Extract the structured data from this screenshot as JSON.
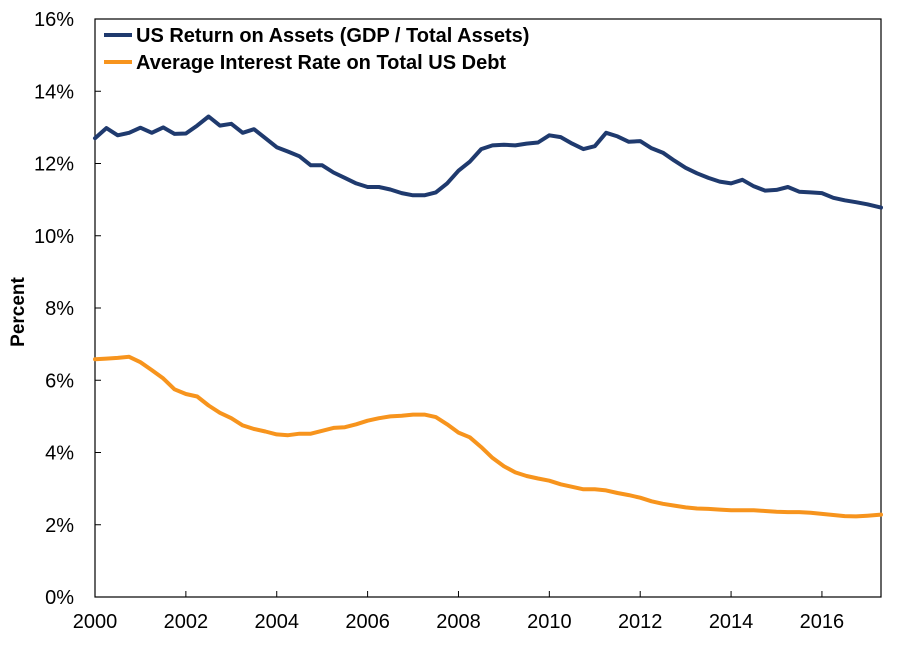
{
  "chart_data": {
    "type": "line",
    "title": "",
    "xlabel": "",
    "ylabel": "Percent",
    "xlim": [
      2000,
      2017.3
    ],
    "ylim": [
      0,
      16
    ],
    "x_ticks": [
      2000,
      2002,
      2004,
      2006,
      2008,
      2010,
      2012,
      2014,
      2016
    ],
    "x_tick_labels": [
      "2000",
      "2002",
      "2004",
      "2006",
      "2008",
      "2010",
      "2012",
      "2014",
      "2016"
    ],
    "y_ticks": [
      0,
      2,
      4,
      6,
      8,
      10,
      12,
      14,
      16
    ],
    "y_tick_labels": [
      "0%",
      "2%",
      "4%",
      "6%",
      "8%",
      "10%",
      "12%",
      "14%",
      "16%"
    ],
    "grid": false,
    "legend_position": "top-left",
    "series": [
      {
        "name": "US Return on Assets (GDP / Total Assets)",
        "color": "#1f3a6e",
        "x": [
          2000.0,
          2000.25,
          2000.5,
          2000.75,
          2001.0,
          2001.25,
          2001.5,
          2001.75,
          2002.0,
          2002.25,
          2002.5,
          2002.75,
          2003.0,
          2003.25,
          2003.5,
          2003.75,
          2004.0,
          2004.25,
          2004.5,
          2004.75,
          2005.0,
          2005.25,
          2005.5,
          2005.75,
          2006.0,
          2006.25,
          2006.5,
          2006.75,
          2007.0,
          2007.25,
          2007.5,
          2007.75,
          2008.0,
          2008.25,
          2008.5,
          2008.75,
          2009.0,
          2009.25,
          2009.5,
          2009.75,
          2010.0,
          2010.25,
          2010.5,
          2010.75,
          2011.0,
          2011.25,
          2011.5,
          2011.75,
          2012.0,
          2012.25,
          2012.5,
          2012.75,
          2013.0,
          2013.25,
          2013.5,
          2013.75,
          2014.0,
          2014.25,
          2014.5,
          2014.75,
          2015.0,
          2015.25,
          2015.5,
          2015.75,
          2016.0,
          2016.25,
          2016.5,
          2016.75,
          2017.0,
          2017.3
        ],
        "y": [
          12.7,
          12.98,
          12.78,
          12.85,
          12.99,
          12.85,
          13.0,
          12.82,
          12.83,
          13.05,
          13.3,
          13.05,
          13.1,
          12.85,
          12.95,
          12.7,
          12.45,
          12.33,
          12.2,
          11.95,
          11.95,
          11.75,
          11.6,
          11.45,
          11.35,
          11.35,
          11.28,
          11.18,
          11.12,
          11.12,
          11.2,
          11.45,
          11.8,
          12.05,
          12.4,
          12.5,
          12.52,
          12.5,
          12.55,
          12.58,
          12.78,
          12.73,
          12.55,
          12.4,
          12.48,
          12.85,
          12.75,
          12.6,
          12.62,
          12.42,
          12.3,
          12.08,
          11.88,
          11.73,
          11.6,
          11.5,
          11.45,
          11.55,
          11.37,
          11.25,
          11.27,
          11.35,
          11.22,
          11.2,
          11.18,
          11.05,
          10.98,
          10.93,
          10.87,
          10.78
        ]
      },
      {
        "name": "Average Interest Rate on Total US Debt",
        "color": "#f7941d",
        "x": [
          2000.0,
          2000.25,
          2000.5,
          2000.75,
          2001.0,
          2001.25,
          2001.5,
          2001.75,
          2002.0,
          2002.25,
          2002.5,
          2002.75,
          2003.0,
          2003.25,
          2003.5,
          2003.75,
          2004.0,
          2004.25,
          2004.5,
          2004.75,
          2005.0,
          2005.25,
          2005.5,
          2005.75,
          2006.0,
          2006.25,
          2006.5,
          2006.75,
          2007.0,
          2007.25,
          2007.5,
          2007.75,
          2008.0,
          2008.25,
          2008.5,
          2008.75,
          2009.0,
          2009.25,
          2009.5,
          2009.75,
          2010.0,
          2010.25,
          2010.5,
          2010.75,
          2011.0,
          2011.25,
          2011.5,
          2011.75,
          2012.0,
          2012.25,
          2012.5,
          2012.75,
          2013.0,
          2013.25,
          2013.5,
          2013.75,
          2014.0,
          2014.25,
          2014.5,
          2014.75,
          2015.0,
          2015.25,
          2015.5,
          2015.75,
          2016.0,
          2016.25,
          2016.5,
          2016.75,
          2017.0,
          2017.3
        ],
        "y": [
          6.58,
          6.6,
          6.62,
          6.65,
          6.5,
          6.28,
          6.05,
          5.75,
          5.62,
          5.55,
          5.3,
          5.1,
          4.95,
          4.75,
          4.65,
          4.58,
          4.5,
          4.48,
          4.52,
          4.52,
          4.6,
          4.68,
          4.7,
          4.78,
          4.88,
          4.95,
          5.0,
          5.02,
          5.05,
          5.05,
          4.98,
          4.78,
          4.55,
          4.42,
          4.15,
          3.85,
          3.62,
          3.45,
          3.35,
          3.28,
          3.22,
          3.12,
          3.05,
          2.98,
          2.98,
          2.95,
          2.88,
          2.82,
          2.75,
          2.65,
          2.58,
          2.53,
          2.48,
          2.45,
          2.44,
          2.42,
          2.4,
          2.4,
          2.4,
          2.38,
          2.36,
          2.35,
          2.35,
          2.33,
          2.3,
          2.27,
          2.24,
          2.23,
          2.25,
          2.28
        ]
      }
    ]
  }
}
